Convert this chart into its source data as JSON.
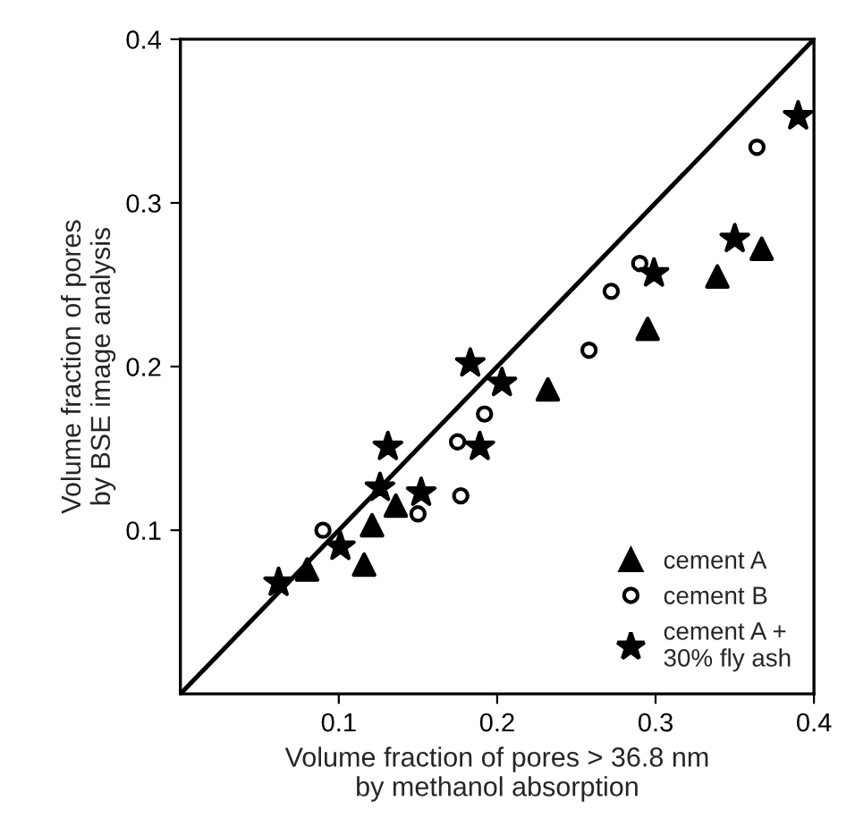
{
  "chart_data": {
    "type": "scatter",
    "xlabel": "Volume fraction of pores > 36.8 nm\nby methanol absorption",
    "ylabel": "Volume fraction of pores\nby BSE image analysis",
    "xlim": [
      0,
      0.4
    ],
    "ylim": [
      0,
      0.4
    ],
    "xticks": [
      0.1,
      0.2,
      0.3,
      0.4
    ],
    "yticks": [
      0.1,
      0.2,
      0.3,
      0.4
    ],
    "grid": false,
    "legend": "bottom right",
    "series": [
      {
        "name": "cement A",
        "color": "#000000",
        "marker": "triangle",
        "x": [
          0.08,
          0.116,
          0.121,
          0.136,
          0.232,
          0.295,
          0.339,
          0.367
        ],
        "values": [
          0.076,
          0.079,
          0.103,
          0.115,
          0.186,
          0.223,
          0.255,
          0.272
        ]
      },
      {
        "name": "cement B",
        "color": "#000000",
        "marker": "circle",
        "x": [
          0.09,
          0.15,
          0.177,
          0.175,
          0.192,
          0.258,
          0.272,
          0.29,
          0.364
        ],
        "values": [
          0.1,
          0.11,
          0.121,
          0.154,
          0.171,
          0.21,
          0.246,
          0.263,
          0.334
        ]
      },
      {
        "name": "cement A +\n30% fly ash",
        "color": "#000000",
        "marker": "star",
        "x": [
          0.062,
          0.101,
          0.126,
          0.131,
          0.152,
          0.189,
          0.183,
          0.203,
          0.299,
          0.35,
          0.39
        ],
        "values": [
          0.068,
          0.09,
          0.126,
          0.151,
          0.123,
          0.151,
          0.202,
          0.19,
          0.257,
          0.278,
          0.353
        ]
      },
      {
        "type": "line",
        "color": "#000000",
        "line_style": "solid",
        "x": [
          0,
          0.4
        ],
        "values": [
          0,
          0.4
        ]
      }
    ]
  }
}
